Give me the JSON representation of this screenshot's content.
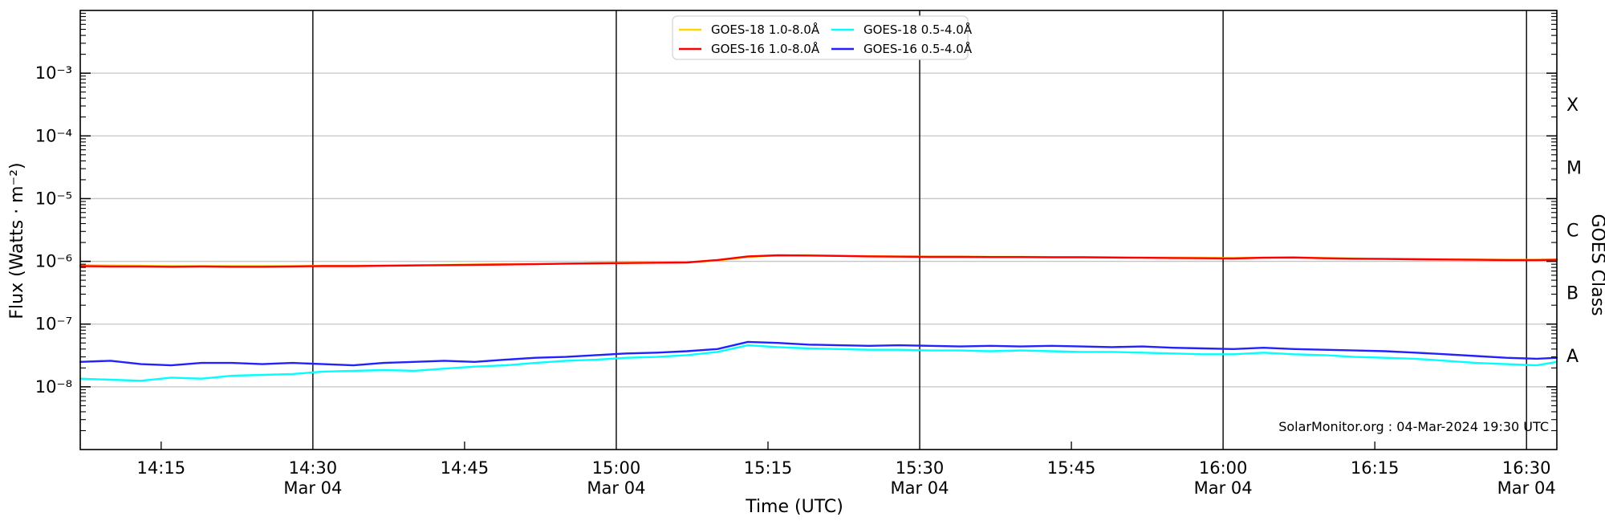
{
  "colors": {
    "background": "#ffffff",
    "spine": "#000000",
    "h_gridline": "#c6c6c6",
    "v_gridline": "#000000",
    "legend_border": "#d5d5d5",
    "text": "#000000"
  },
  "chart_data": {
    "type": "line",
    "source": "SolarMonitor GOES X-ray flux plot",
    "xlabel": "Time (UTC)",
    "ylabel_left": "Flux (Watts · m⁻²)",
    "ylabel_right": "GOES Class",
    "annotation": "SolarMonitor.org : 04-Mar-2024 19:30 UTC",
    "date_sublabel": "Mar 04",
    "x_axis": {
      "start_min": 7,
      "end_min": 153,
      "start_time": "14:07",
      "end_time": "16:33",
      "ticks": [
        {
          "min": 15,
          "label": "14:15",
          "major": false
        },
        {
          "min": 30,
          "label": "14:30",
          "major": true
        },
        {
          "min": 45,
          "label": "14:45",
          "major": false
        },
        {
          "min": 60,
          "label": "15:00",
          "major": true
        },
        {
          "min": 75,
          "label": "15:15",
          "major": false
        },
        {
          "min": 90,
          "label": "15:30",
          "major": true
        },
        {
          "min": 105,
          "label": "15:45",
          "major": false
        },
        {
          "min": 120,
          "label": "16:00",
          "major": true
        },
        {
          "min": 135,
          "label": "16:15",
          "major": false
        },
        {
          "min": 150,
          "label": "16:30",
          "major": true
        }
      ]
    },
    "y_axis": {
      "scale": "log",
      "min_exp": -9,
      "max_exp": -2,
      "ticks": [
        {
          "exp": -3,
          "label": "10⁻³"
        },
        {
          "exp": -4,
          "label": "10⁻⁴"
        },
        {
          "exp": -5,
          "label": "10⁻⁵"
        },
        {
          "exp": -6,
          "label": "10⁻⁶"
        },
        {
          "exp": -7,
          "label": "10⁻⁷"
        },
        {
          "exp": -8,
          "label": "10⁻⁸"
        }
      ]
    },
    "goes_class_labels": [
      {
        "label": "X",
        "exp": -3.5
      },
      {
        "label": "M",
        "exp": -4.5
      },
      {
        "label": "C",
        "exp": -5.5
      },
      {
        "label": "B",
        "exp": -6.5
      },
      {
        "label": "A",
        "exp": -7.5
      }
    ],
    "times_min": [
      7,
      10,
      13,
      16,
      19,
      22,
      25,
      28,
      31,
      34,
      37,
      40,
      43,
      46,
      49,
      52,
      55,
      58,
      61,
      64,
      67,
      70,
      73,
      76,
      79,
      82,
      85,
      88,
      91,
      94,
      97,
      100,
      103,
      106,
      109,
      112,
      115,
      118,
      121,
      124,
      127,
      130,
      133,
      136,
      139,
      142,
      145,
      148,
      151,
      153
    ],
    "series": [
      {
        "name": "GOES-18 1.0-8.0Å",
        "color": "#ffd700",
        "values": [
          8.7e-07,
          8.6e-07,
          8.5e-07,
          8.4e-07,
          8.4e-07,
          8.4e-07,
          8.4e-07,
          8.4e-07,
          8.5e-07,
          8.5e-07,
          8.6e-07,
          8.7e-07,
          8.8e-07,
          8.9e-07,
          9e-07,
          9.1e-07,
          9.2e-07,
          9.3e-07,
          9.5e-07,
          9.6e-07,
          9.7e-07,
          1.03e-06,
          1.18e-06,
          1.24e-06,
          1.25e-06,
          1.23e-06,
          1.21e-06,
          1.2e-06,
          1.19e-06,
          1.19e-06,
          1.18e-06,
          1.18e-06,
          1.17e-06,
          1.17e-06,
          1.16e-06,
          1.15e-06,
          1.15e-06,
          1.14e-06,
          1.13e-06,
          1.15e-06,
          1.16e-06,
          1.13e-06,
          1.11e-06,
          1.1e-06,
          1.09e-06,
          1.08e-06,
          1.07e-06,
          1.06e-06,
          1.06e-06,
          1.07e-06
        ]
      },
      {
        "name": "GOES-16 1.0-8.0Å",
        "color": "#ff0000",
        "values": [
          8.4e-07,
          8.3e-07,
          8.3e-07,
          8.2e-07,
          8.3e-07,
          8.2e-07,
          8.2e-07,
          8.3e-07,
          8.4e-07,
          8.4e-07,
          8.5e-07,
          8.6e-07,
          8.7e-07,
          8.8e-07,
          8.9e-07,
          9e-07,
          9.2e-07,
          9.3e-07,
          9.4e-07,
          9.5e-07,
          9.6e-07,
          1.05e-06,
          1.2e-06,
          1.25e-06,
          1.24e-06,
          1.22e-06,
          1.2e-06,
          1.19e-06,
          1.18e-06,
          1.18e-06,
          1.17e-06,
          1.17e-06,
          1.16e-06,
          1.16e-06,
          1.15e-06,
          1.14e-06,
          1.13e-06,
          1.12e-06,
          1.11e-06,
          1.14e-06,
          1.15e-06,
          1.12e-06,
          1.1e-06,
          1.09e-06,
          1.08e-06,
          1.07e-06,
          1.06e-06,
          1.05e-06,
          1.05e-06,
          1.06e-06
        ]
      },
      {
        "name": "GOES-18 0.5-4.0Å",
        "color": "#00ffff",
        "values": [
          1.35e-08,
          1.3e-08,
          1.25e-08,
          1.4e-08,
          1.35e-08,
          1.5e-08,
          1.55e-08,
          1.6e-08,
          1.75e-08,
          1.8e-08,
          1.85e-08,
          1.8e-08,
          1.95e-08,
          2.1e-08,
          2.2e-08,
          2.4e-08,
          2.6e-08,
          2.7e-08,
          2.9e-08,
          3e-08,
          3.2e-08,
          3.6e-08,
          4.6e-08,
          4.3e-08,
          4.1e-08,
          4e-08,
          3.9e-08,
          3.9e-08,
          3.8e-08,
          3.8e-08,
          3.7e-08,
          3.8e-08,
          3.7e-08,
          3.6e-08,
          3.6e-08,
          3.5e-08,
          3.4e-08,
          3.3e-08,
          3.3e-08,
          3.5e-08,
          3.3e-08,
          3.2e-08,
          3e-08,
          2.9e-08,
          2.8e-08,
          2.6e-08,
          2.4e-08,
          2.3e-08,
          2.2e-08,
          2.5e-08
        ]
      },
      {
        "name": "GOES-16 0.5-4.0Å",
        "color": "#2222ff",
        "values": [
          2.5e-08,
          2.6e-08,
          2.3e-08,
          2.2e-08,
          2.4e-08,
          2.4e-08,
          2.3e-08,
          2.4e-08,
          2.3e-08,
          2.2e-08,
          2.4e-08,
          2.5e-08,
          2.6e-08,
          2.5e-08,
          2.7e-08,
          2.9e-08,
          3e-08,
          3.2e-08,
          3.4e-08,
          3.5e-08,
          3.7e-08,
          4e-08,
          5.2e-08,
          5e-08,
          4.7e-08,
          4.6e-08,
          4.5e-08,
          4.6e-08,
          4.5e-08,
          4.4e-08,
          4.5e-08,
          4.4e-08,
          4.5e-08,
          4.4e-08,
          4.3e-08,
          4.4e-08,
          4.2e-08,
          4.1e-08,
          4e-08,
          4.2e-08,
          4e-08,
          3.9e-08,
          3.8e-08,
          3.7e-08,
          3.5e-08,
          3.3e-08,
          3.1e-08,
          2.9e-08,
          2.8e-08,
          2.9e-08
        ]
      }
    ],
    "legend": {
      "columns": 2,
      "entries_order": [
        "GOES-18 1.0-8.0Å",
        "GOES-16 1.0-8.0Å",
        "GOES-18 0.5-4.0Å",
        "GOES-16 0.5-4.0Å"
      ]
    }
  }
}
